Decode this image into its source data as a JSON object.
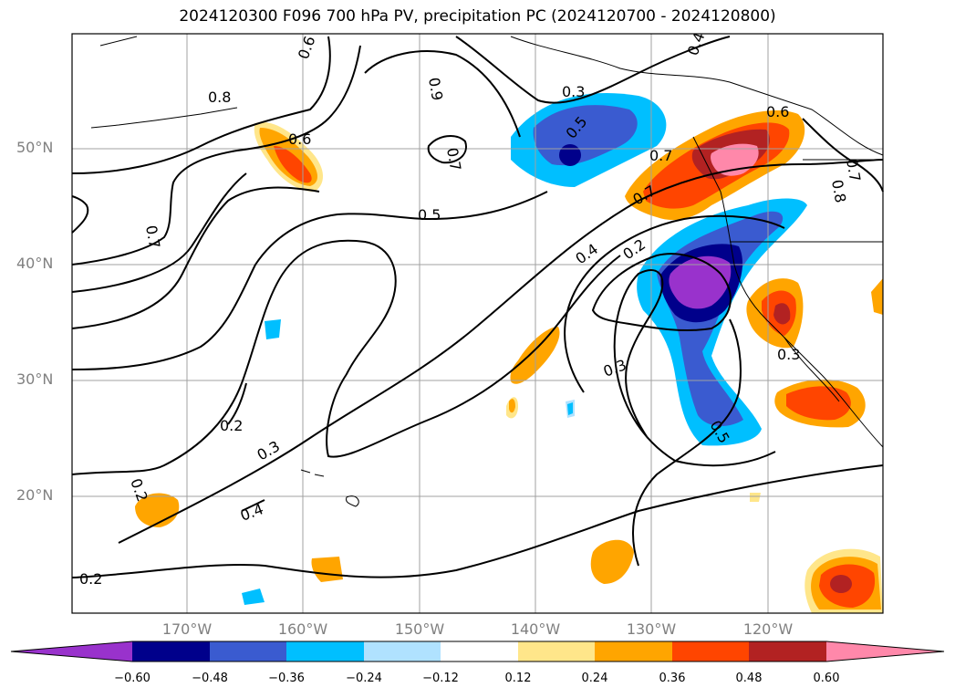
{
  "title": "2024120300 F096 700 hPa PV, precipitation PC (2024120700 - 2024120800)",
  "lat_labels": [
    "50°N",
    "40°N",
    "30°N",
    "20°N"
  ],
  "lon_labels": [
    "170°W",
    "160°W",
    "150°W",
    "140°W",
    "130°W",
    "120°W"
  ],
  "contour_labels": [
    "0.3",
    "0.4",
    "0.6",
    "0.8",
    "0.6",
    "0.7",
    "0.5",
    "0.7",
    "0.9",
    "0.7",
    "0.5",
    "0.6",
    "0.7",
    "0.8",
    "0.7",
    "0.4",
    "0.2",
    "0.3",
    "0.3",
    "0.5",
    "0.2",
    "0.3",
    "0.4",
    "0.2",
    "0.2"
  ],
  "colorbar": {
    "ticks": [
      "−0.60",
      "−0.48",
      "−0.36",
      "−0.24",
      "−0.12",
      "0.12",
      "0.24",
      "0.36",
      "0.48",
      "0.60"
    ],
    "colors": [
      "#9932cc",
      "#00008b",
      "#3a5bd0",
      "#00bfff",
      "#b0e2ff",
      "#ffffff",
      "#ffe68a",
      "#ffa500",
      "#ff4500",
      "#b22222",
      "#ff88aa",
      "#ff88aa"
    ]
  }
}
